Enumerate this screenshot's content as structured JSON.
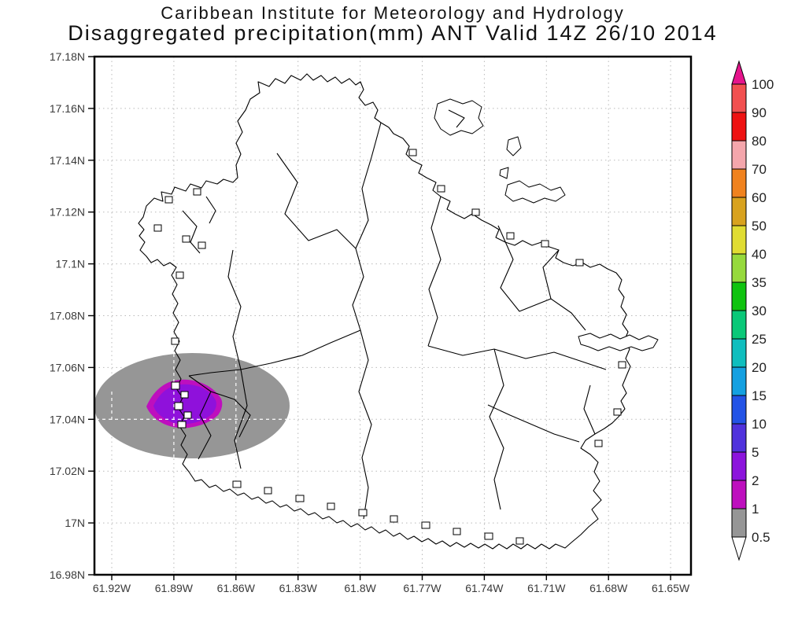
{
  "title": {
    "line1": "Caribbean Institute for Meteorology and Hydrology",
    "line2": "Disaggregated precipitation(mm) ANT Valid 14Z 26/10 2014"
  },
  "axes": {
    "y_labels": [
      "17.18N",
      "17.16N",
      "17.14N",
      "17.12N",
      "17.1N",
      "17.08N",
      "17.06N",
      "17.04N",
      "17.02N",
      "17N",
      "16.98N"
    ],
    "x_labels": [
      "61.92W",
      "61.89W",
      "61.86W",
      "61.83W",
      "61.8W",
      "61.77W",
      "61.74W",
      "61.71W",
      "61.68W",
      "61.65W"
    ]
  },
  "colorbar": {
    "labels": [
      "100",
      "90",
      "80",
      "70",
      "60",
      "50",
      "40",
      "35",
      "30",
      "25",
      "20",
      "15",
      "10",
      "5",
      "2",
      "1",
      "0.5"
    ],
    "over_color": "#E6148C",
    "under_color": "#FFFFFF",
    "segments": [
      {
        "range": "90-100",
        "color": "#F25050"
      },
      {
        "range": "80-90",
        "color": "#EE1212"
      },
      {
        "range": "70-80",
        "color": "#F4A6AC"
      },
      {
        "range": "60-70",
        "color": "#F0821E"
      },
      {
        "range": "50-60",
        "color": "#D8A21E"
      },
      {
        "range": "40-50",
        "color": "#E0DC32"
      },
      {
        "range": "35-40",
        "color": "#96D93C"
      },
      {
        "range": "30-35",
        "color": "#0FC30F"
      },
      {
        "range": "25-30",
        "color": "#0AC878"
      },
      {
        "range": "20-25",
        "color": "#0FBEBE"
      },
      {
        "range": "15-20",
        "color": "#14A0E1"
      },
      {
        "range": "10-15",
        "color": "#2353E6"
      },
      {
        "range": "5-10",
        "color": "#5032DC"
      },
      {
        "range": "2-5",
        "color": "#8C14DC"
      },
      {
        "range": "1-2",
        "color": "#BE0FBE"
      },
      {
        "range": "0.5-1",
        "color": "#969696"
      }
    ]
  },
  "map": {
    "regions": [
      {
        "value_range_mm": "0.5-1",
        "color": "#969696"
      },
      {
        "value_range_mm": "1-2",
        "color": "#BE0FBE"
      },
      {
        "value_range_mm": "2-5",
        "color": "#8F11DB"
      }
    ]
  },
  "chart_data": {
    "type": "contour-map",
    "title": "Disaggregated precipitation(mm) ANT Valid 14Z 26/10 2014",
    "source": "Caribbean Institute for Meteorology and Hydrology",
    "region": "ANT (Antigua)",
    "valid_time": "14Z 26/10 2014",
    "units": "mm",
    "lat_ticks": [
      "16.98N",
      "17N",
      "17.02N",
      "17.04N",
      "17.06N",
      "17.08N",
      "17.1N",
      "17.12N",
      "17.14N",
      "17.16N",
      "17.18N"
    ],
    "lon_ticks": [
      "61.92W",
      "61.89W",
      "61.86W",
      "61.83W",
      "61.8W",
      "61.77W",
      "61.74W",
      "61.71W",
      "61.68W",
      "61.65W"
    ],
    "contour_levels_mm": [
      0.5,
      1,
      2,
      5,
      10,
      15,
      20,
      25,
      30,
      35,
      40,
      50,
      60,
      70,
      80,
      90,
      100
    ],
    "grid": "dotted",
    "legend_position": "right vertical colorbar with over/under arrows",
    "shaded_regions": [
      {
        "value_range_mm": "0.5-1",
        "shape": "ellipse",
        "color": "#969696",
        "lon_extent": [
          "61.93W",
          "61.835W"
        ],
        "lat_extent": [
          "17.025N",
          "17.066N"
        ],
        "center": [
          "61.88W",
          "17.045N"
        ]
      },
      {
        "value_range_mm": "1-2",
        "shape": "pointed oval ring",
        "color": "#BE0FBE",
        "lon_extent": [
          "61.903W",
          "61.868W"
        ],
        "lat_extent": [
          "17.037N",
          "17.054N"
        ],
        "center": [
          "61.886W",
          "17.046N"
        ]
      },
      {
        "value_range_mm": "2-5",
        "shape": "pointed oval core",
        "color": "#8F11DB",
        "lon_extent": [
          "61.9W",
          "61.871W"
        ],
        "lat_extent": [
          "17.039N",
          "17.052N"
        ],
        "center": [
          "61.886W",
          "17.046N"
        ]
      }
    ],
    "max_value_range_mm": "2-5"
  }
}
